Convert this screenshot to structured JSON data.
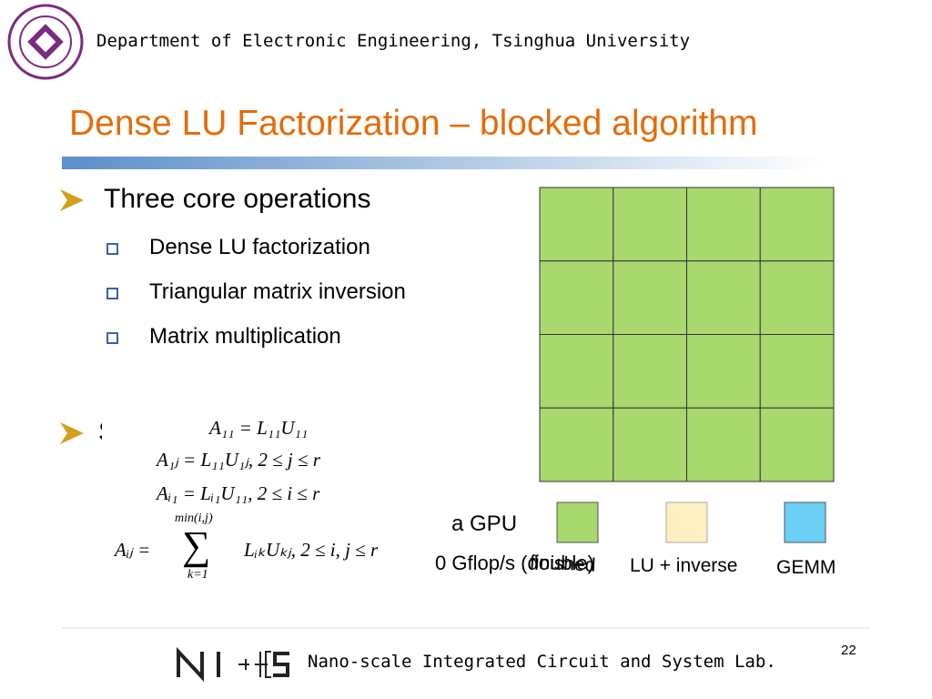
{
  "header": {
    "institution": "Department of Electronic Engineering, Tsinghua University"
  },
  "title": "Dense LU Factorization – blocked algorithm",
  "bullets": [
    {
      "text": "Three core operations",
      "items": [
        "Dense LU factorization",
        "Triangular matrix inversion",
        "Matrix multiplication"
      ]
    },
    {
      "text": "S",
      "items": [
        "a GPU",
        "0 Gflop/s (double)"
      ]
    }
  ],
  "equations": {
    "lines": [
      "A₁₁ = L₁₁U₁₁",
      "A₁ⱼ = L₁₁U₁ⱼ,   2 ≤ j ≤ r",
      "Aᵢ₁ = Lᵢ₁U₁₁,   2 ≤ i ≤ r"
    ],
    "sum": {
      "lhs": "Aᵢⱼ =",
      "upper": "min(i,j)",
      "symbol": "∑",
      "lower": "k=1",
      "rhs": "LᵢₖUₖⱼ,   2 ≤ i, j ≤ r"
    }
  },
  "legend": [
    "finished",
    "LU + inverse",
    "GEMM"
  ],
  "footer": {
    "lab": "Nano-scale Integrated Circuit and System Lab.",
    "page": "22",
    "logo": "NICS"
  }
}
